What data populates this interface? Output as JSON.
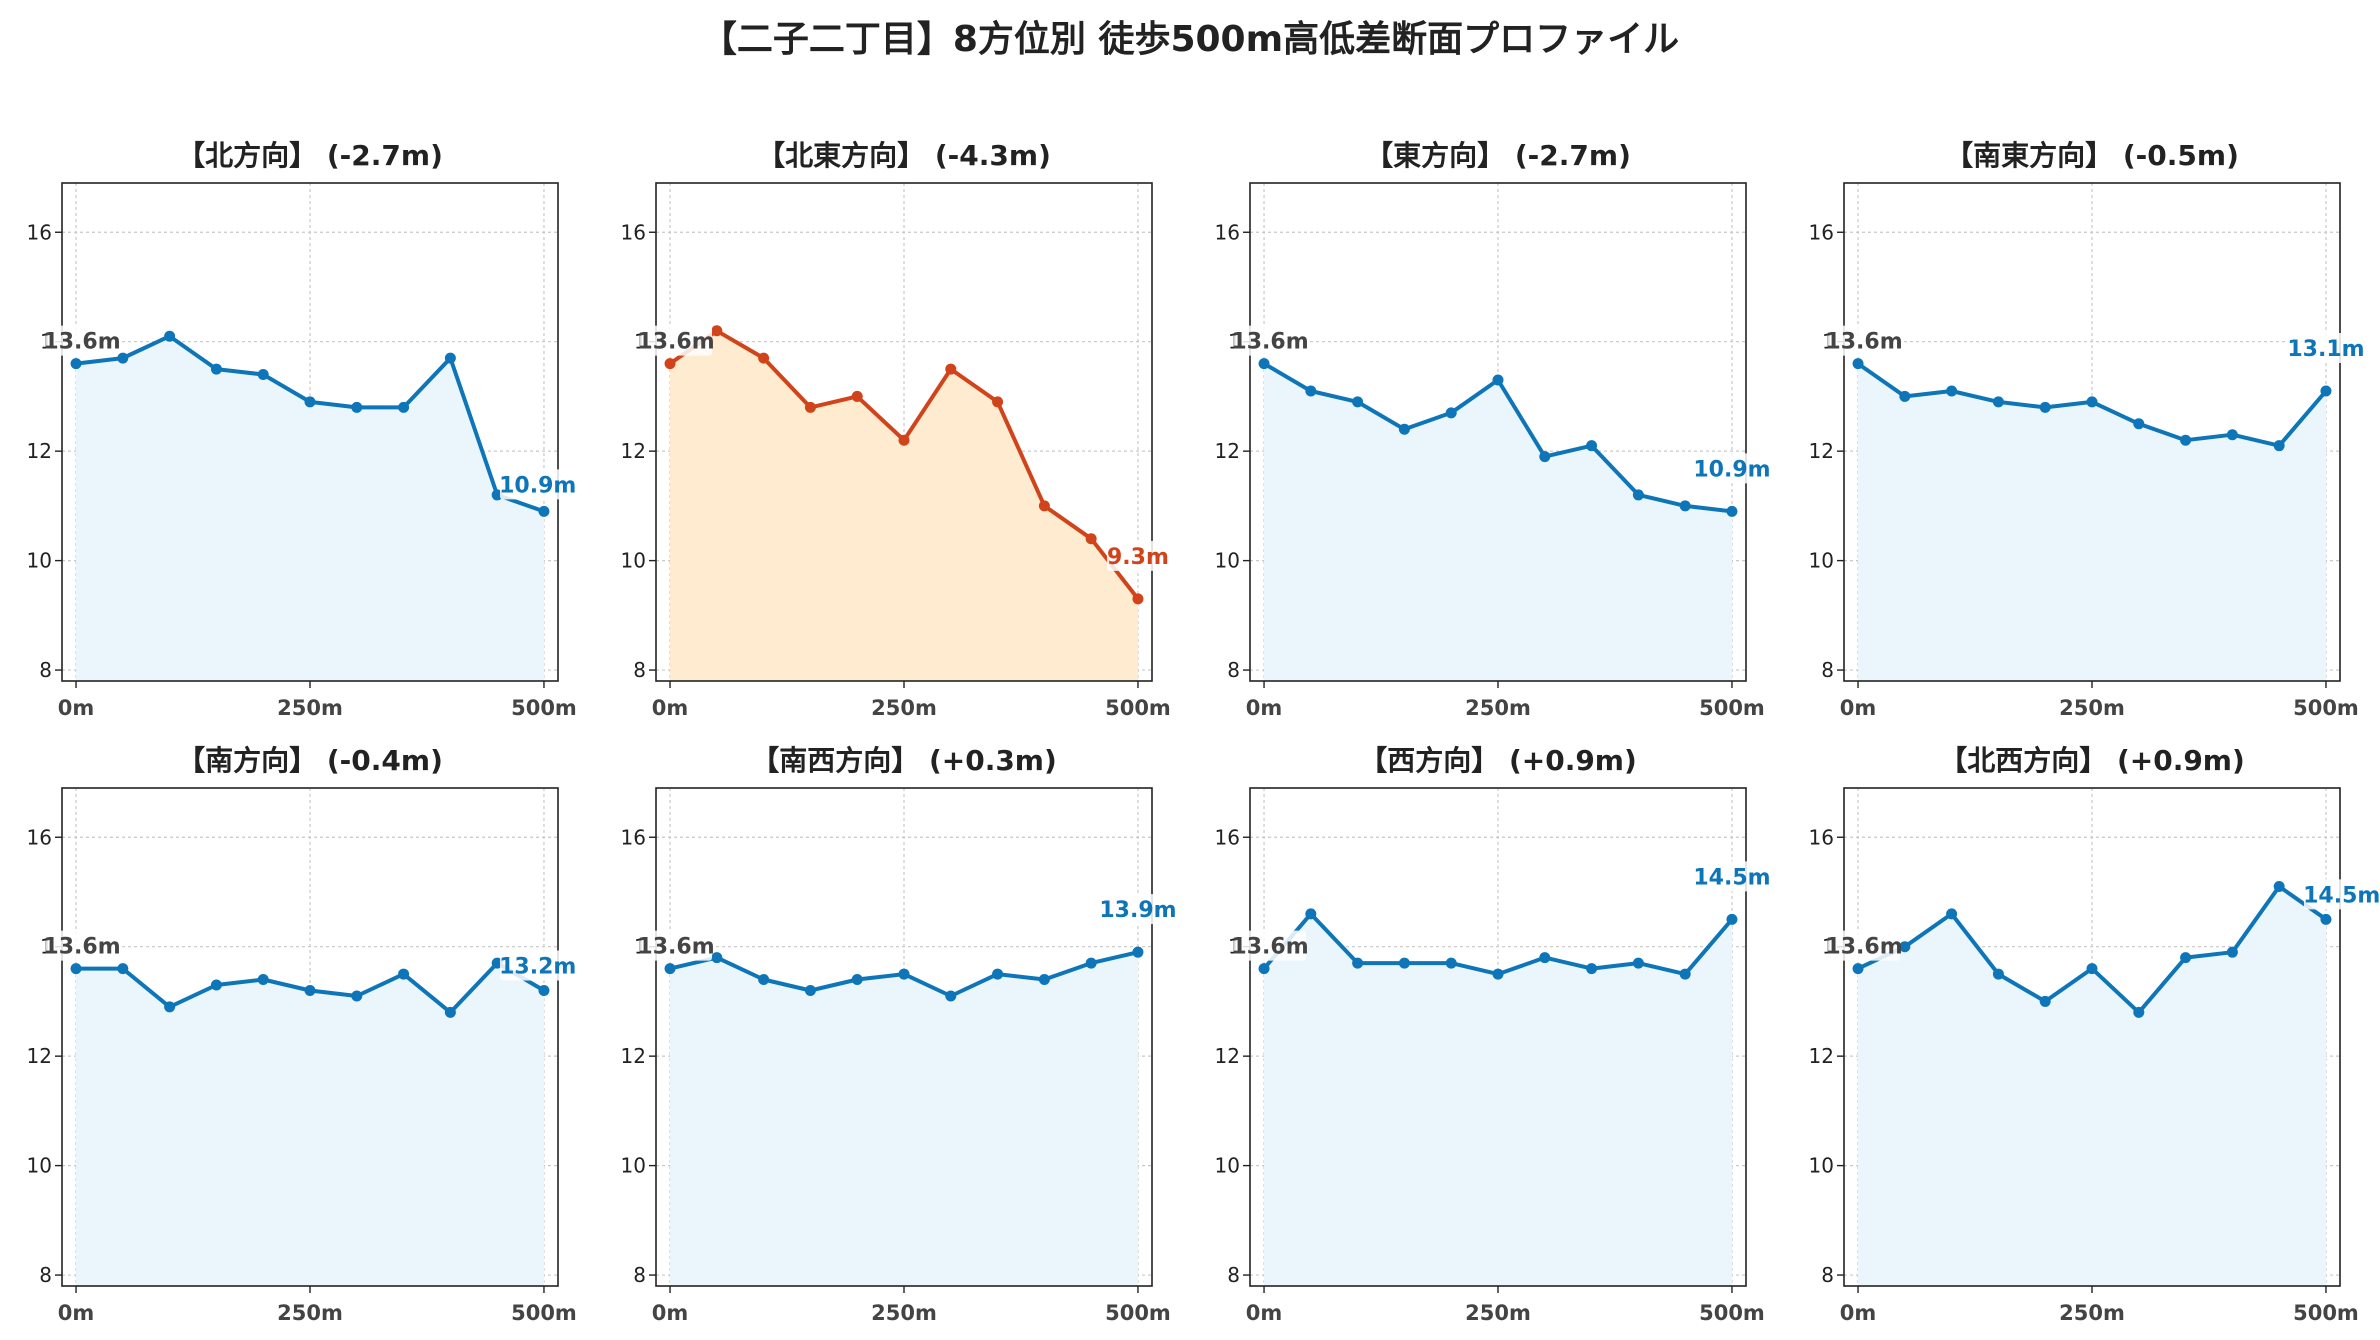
{
  "title": "【二子二丁目】8方位別 徒歩500m高低差断面プロファイル",
  "colors": {
    "line_default": "#0E76B8",
    "fill_default": "#EAF6FC",
    "line_highlight": "#D1431A",
    "fill_highlight": "#FEEBD0",
    "grid": "#C8C8C8",
    "start_label": "#444444"
  },
  "chart_data": [
    {
      "type": "line",
      "title": "【北方向】 (-2.7m)",
      "x": [
        0,
        50,
        100,
        150,
        200,
        250,
        300,
        350,
        400,
        450,
        500
      ],
      "values": [
        13.6,
        13.7,
        14.1,
        13.5,
        13.4,
        12.9,
        12.8,
        12.8,
        13.7,
        11.2,
        10.9
      ],
      "start_label": "13.6m",
      "end_label": "10.9m",
      "highlight": false
    },
    {
      "type": "line",
      "title": "【北東方向】 (-4.3m)",
      "x": [
        0,
        50,
        100,
        150,
        200,
        250,
        300,
        350,
        400,
        450,
        500
      ],
      "values": [
        13.6,
        14.2,
        13.7,
        12.8,
        13.0,
        12.2,
        13.5,
        12.9,
        11.0,
        10.4,
        9.3
      ],
      "start_label": "13.6m",
      "end_label": "9.3m",
      "highlight": true
    },
    {
      "type": "line",
      "title": "【東方向】 (-2.7m)",
      "x": [
        0,
        50,
        100,
        150,
        200,
        250,
        300,
        350,
        400,
        450,
        500
      ],
      "values": [
        13.6,
        13.1,
        12.9,
        12.4,
        12.7,
        13.3,
        11.9,
        12.1,
        11.2,
        11.0,
        10.9
      ],
      "start_label": "13.6m",
      "end_label": "10.9m",
      "highlight": false
    },
    {
      "type": "line",
      "title": "【南東方向】 (-0.5m)",
      "x": [
        0,
        50,
        100,
        150,
        200,
        250,
        300,
        350,
        400,
        450,
        500
      ],
      "values": [
        13.6,
        13.0,
        13.1,
        12.9,
        12.8,
        12.9,
        12.5,
        12.2,
        12.3,
        12.1,
        13.1
      ],
      "start_label": "13.6m",
      "end_label": "13.1m",
      "highlight": false
    },
    {
      "type": "line",
      "title": "【南方向】 (-0.4m)",
      "x": [
        0,
        50,
        100,
        150,
        200,
        250,
        300,
        350,
        400,
        450,
        500
      ],
      "values": [
        13.6,
        13.6,
        12.9,
        13.3,
        13.4,
        13.2,
        13.1,
        13.5,
        12.8,
        13.7,
        13.2
      ],
      "start_label": "13.6m",
      "end_label": "13.2m",
      "highlight": false
    },
    {
      "type": "line",
      "title": "【南西方向】 (+0.3m)",
      "x": [
        0,
        50,
        100,
        150,
        200,
        250,
        300,
        350,
        400,
        450,
        500
      ],
      "values": [
        13.6,
        13.8,
        13.4,
        13.2,
        13.4,
        13.5,
        13.1,
        13.5,
        13.4,
        13.7,
        13.9
      ],
      "start_label": "13.6m",
      "end_label": "13.9m",
      "highlight": false
    },
    {
      "type": "line",
      "title": "【西方向】 (+0.9m)",
      "x": [
        0,
        50,
        100,
        150,
        200,
        250,
        300,
        350,
        400,
        450,
        500
      ],
      "values": [
        13.6,
        14.6,
        13.7,
        13.7,
        13.7,
        13.5,
        13.8,
        13.6,
        13.7,
        13.5,
        14.5
      ],
      "start_label": "13.6m",
      "end_label": "14.5m",
      "highlight": false
    },
    {
      "type": "line",
      "title": "【北西方向】 (+0.9m)",
      "x": [
        0,
        50,
        100,
        150,
        200,
        250,
        300,
        350,
        400,
        450,
        500
      ],
      "values": [
        13.6,
        14.0,
        14.6,
        13.5,
        13.0,
        13.6,
        12.8,
        13.8,
        13.9,
        15.1,
        14.5
      ],
      "start_label": "13.6m",
      "end_label": "14.5m",
      "highlight": false
    }
  ],
  "axes": {
    "ylim": [
      7.8,
      16.9
    ],
    "yticks": [
      "8",
      "10",
      "12",
      "16"
    ],
    "yticks_values": [
      8,
      10,
      12,
      16
    ],
    "y14_label": "1",
    "xlim": [
      -15,
      515
    ],
    "xticks_values": [
      0,
      250,
      500
    ],
    "xticks": [
      "0m",
      "250m",
      "500m"
    ],
    "grid": true
  }
}
